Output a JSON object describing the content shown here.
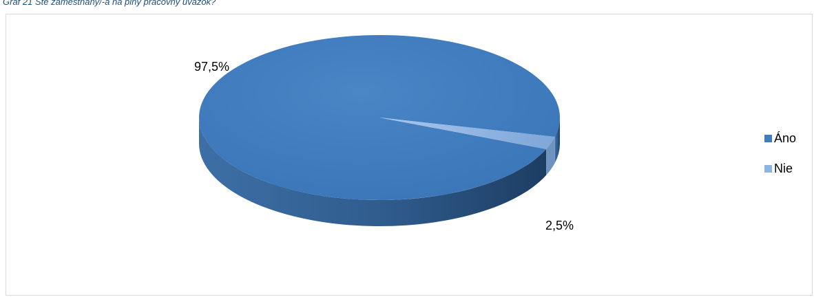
{
  "caption": "Graf 21 Ste zamestnaný/-á na plný pracovný úväzok?",
  "chart_data": {
    "type": "pie",
    "title": "",
    "categories": [
      "Áno",
      "Nie"
    ],
    "values": [
      97.5,
      2.5
    ],
    "labels": [
      "97,5%",
      "2,5%"
    ],
    "colors": [
      "#3f7dbf",
      "#8fb4e3"
    ],
    "legend_position": "right",
    "style": "3d"
  }
}
